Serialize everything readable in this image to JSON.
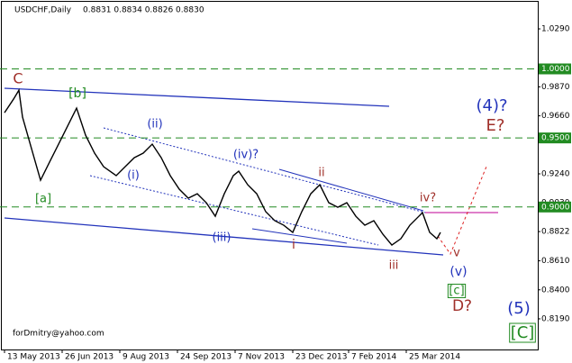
{
  "chart_data": {
    "type": "line",
    "title": "USDCHF,Daily",
    "quote": "0.8831 0.8834 0.8826 0.8830",
    "watermark": "forDmitry@yahoo.com",
    "color": "#000000",
    "x": [
      0,
      5,
      8,
      10,
      15,
      20,
      25,
      30,
      35,
      40,
      45,
      50,
      55,
      62,
      67,
      72,
      77,
      82,
      87,
      92,
      97,
      102,
      107,
      112,
      117,
      122,
      127,
      130,
      135,
      140,
      145,
      150,
      155,
      160,
      165,
      170,
      175,
      180,
      185,
      190,
      195,
      200,
      205,
      210,
      215,
      220,
      225,
      230,
      232,
      236,
      240,
      242
    ],
    "values": [
      0.9683,
      0.9781,
      0.9846,
      0.9651,
      0.9422,
      0.9194,
      0.9325,
      0.9455,
      0.9585,
      0.9716,
      0.952,
      0.939,
      0.9292,
      0.9227,
      0.9292,
      0.9357,
      0.939,
      0.9455,
      0.9357,
      0.9227,
      0.9129,
      0.9064,
      0.9096,
      0.9031,
      0.8933,
      0.9096,
      0.9227,
      0.9259,
      0.9161,
      0.9096,
      0.8966,
      0.8901,
      0.8868,
      0.8816,
      0.8966,
      0.9096,
      0.9161,
      0.9031,
      0.8998,
      0.9031,
      0.8933,
      0.8868,
      0.8901,
      0.8803,
      0.8724,
      0.877,
      0.8868,
      0.8933,
      0.8959,
      0.8816,
      0.877,
      0.8816
    ],
    "xlim": [
      -2.5,
      296
    ],
    "xticks": [
      {
        "value": 0,
        "label": "13 May 2013"
      },
      {
        "value": 32,
        "label": "26 Jun 2013"
      },
      {
        "value": 64,
        "label": "9 Aug 2013"
      },
      {
        "value": 96,
        "label": "24 Sep 2013"
      },
      {
        "value": 128,
        "label": "7 Nov 2013"
      },
      {
        "value": 160,
        "label": "23 Dec 2013"
      },
      {
        "value": 191,
        "label": "7 Feb 2014"
      },
      {
        "value": 223,
        "label": "25 Mar 2014"
      }
    ],
    "ylim": [
      0.7968,
      1.0499
    ],
    "yticks": [
      {
        "value": 1.029,
        "label": "1.0290"
      },
      {
        "value": 0.987,
        "label": "0.9870"
      },
      {
        "value": 0.966,
        "label": "0.9660"
      },
      {
        "value": 0.924,
        "label": "0.9240"
      },
      {
        "value": 0.903,
        "label": "0.9030"
      },
      {
        "value": 0.8822,
        "label": "0.8822"
      },
      {
        "value": 0.861,
        "label": "0.8610"
      },
      {
        "value": 0.84,
        "label": "0.8400"
      },
      {
        "value": 0.819,
        "label": "0.8190"
      }
    ],
    "levels": [
      {
        "value": 1.0,
        "label": "1.0000"
      },
      {
        "value": 0.95,
        "label": "0.9500"
      },
      {
        "value": 0.9,
        "label": "0.9000"
      }
    ],
    "level_color": "#228B22",
    "annotations": [
      {
        "text": "C",
        "color": "#a0302a"
      },
      {
        "text": "[b]",
        "color": "#228B22"
      },
      {
        "text": "[a]",
        "color": "#228B22"
      },
      {
        "text": "(ii)",
        "color": "#2233bb"
      },
      {
        "text": "(i)",
        "color": "#2233bb"
      },
      {
        "text": "(iii)",
        "color": "#2233bb"
      },
      {
        "text": "(iv)?",
        "color": "#2233bb"
      },
      {
        "text": "ii",
        "color": "#a0302a"
      },
      {
        "text": "i",
        "color": "#a0302a"
      },
      {
        "text": "iii",
        "color": "#a0302a"
      },
      {
        "text": "iv?",
        "color": "#a0302a"
      },
      {
        "text": "v",
        "color": "#a0302a"
      },
      {
        "text": "(v)",
        "color": "#2233bb"
      },
      {
        "text": "[c]",
        "color": "#228B22"
      },
      {
        "text": "D?",
        "color": "#a0302a"
      },
      {
        "text": "(4)?",
        "color": "#2233bb"
      },
      {
        "text": "E?",
        "color": "#a0302a"
      },
      {
        "text": "(5)",
        "color": "#2233bb"
      },
      {
        "text": "[C]",
        "color": "#228B22"
      }
    ]
  }
}
